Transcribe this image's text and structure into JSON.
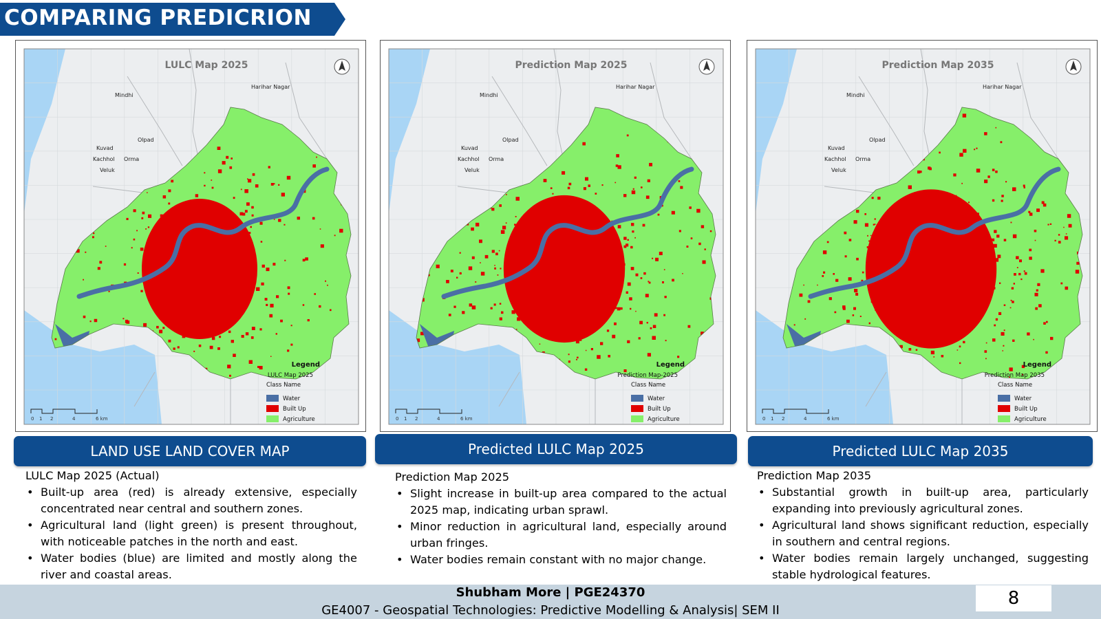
{
  "page_title": "COMPARING PREDICRION MAPS",
  "colors": {
    "banner": "#0e4c8f",
    "water": "#4a6fa5",
    "built_up": "#e00000",
    "agriculture": "#86ef6a",
    "sea": "#a9d5f5",
    "footer": "#c6d4df"
  },
  "maps": [
    {
      "map_title": "LULC Map 2025",
      "legend": {
        "title": "Legend",
        "map_name": "LULC Map 2025",
        "class_header": "Class Name",
        "classes": [
          "Water",
          "Built Up",
          "Agriculture"
        ]
      },
      "scale_labels": [
        "0",
        "1",
        "2",
        "4",
        "6 km"
      ],
      "built_density": 0.4,
      "panel_label": "LAND USE LAND COVER MAP",
      "heading": "LULC Map 2025 (Actual)",
      "bullets": [
        "Built-up area (red) is already extensive, especially concentrated near central and southern zones.",
        "Agricultural land (light green) is present throughout, with noticeable patches in the north and east.",
        "Water bodies (blue) are limited and mostly along the river and coastal areas."
      ]
    },
    {
      "map_title": "Prediction Map 2025",
      "legend": {
        "title": "Legend",
        "map_name": "Prediction Map-2025",
        "class_header": "Class Name",
        "classes": [
          "Water",
          "Built Up",
          "Agriculture"
        ]
      },
      "scale_labels": [
        "0",
        "1",
        "2",
        "4",
        "6 km"
      ],
      "built_density": 0.46,
      "panel_label": "Predicted LULC Map 2025",
      "heading": "Prediction Map 2025",
      "bullets": [
        "Slight increase in built-up area compared to the actual 2025 map, indicating urban sprawl.",
        "Minor reduction in agricultural land, especially around urban fringes.",
        "Water bodies remain constant with no major change."
      ]
    },
    {
      "map_title": "Prediction Map 2035",
      "legend": {
        "title": "Legend",
        "map_name": "Prediction Map 2035",
        "class_header": "Class Name",
        "classes": [
          "Water",
          "Built Up",
          "Agriculture"
        ]
      },
      "scale_labels": [
        "0",
        "1",
        "2",
        "4",
        "6 km"
      ],
      "built_density": 0.56,
      "panel_label": "Predicted LULC Map 2035",
      "heading": "Prediction Map 2035",
      "bullets": [
        "Substantial growth in built-up area, particularly expanding into previously agricultural zones.",
        "Agricultural land shows significant reduction, especially in southern and central regions.",
        "Water bodies remain largely unchanged, suggesting stable hydrological features."
      ]
    }
  ],
  "place_names": [
    "Harihar Nagar",
    "Mindhi",
    "Olpad",
    "Kuvad",
    "Kachhol",
    "Veluk",
    "Orma"
  ],
  "footer": {
    "author": "Shubham More  |  PGE24370",
    "course": "GE4007 - Geospatial Technologies: Predictive Modelling & Analysis| SEM II",
    "page_number": "8"
  }
}
